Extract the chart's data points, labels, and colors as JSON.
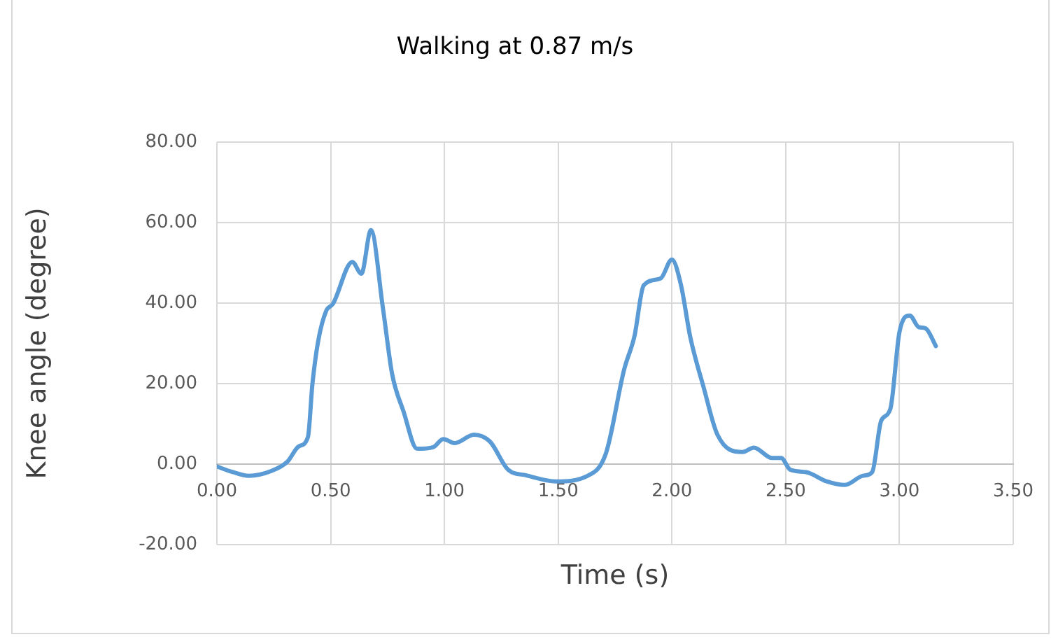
{
  "chart_data": {
    "type": "line",
    "title": "Walking at 0.87 m/s",
    "xlabel": "Time (s)",
    "ylabel": "Knee angle (degree)",
    "x": [
      0,
      0.07,
      0.14,
      0.24,
      0.31,
      0.36,
      0.4,
      0.42,
      0.445,
      0.48,
      0.51,
      0.595,
      0.635,
      0.677,
      0.73,
      0.77,
      0.82,
      0.88,
      0.95,
      0.995,
      1.045,
      1.13,
      1.2,
      1.28,
      1.36,
      1.49,
      1.63,
      1.71,
      1.79,
      1.835,
      1.876,
      1.95,
      2.0,
      2.04,
      2.08,
      2.14,
      2.2,
      2.31,
      2.36,
      2.44,
      2.48,
      2.52,
      2.59,
      2.68,
      2.76,
      2.84,
      2.88,
      2.92,
      2.96,
      3.0,
      3.045,
      3.085,
      3.115,
      3.16
    ],
    "series": [
      {
        "color": "#5b9bd5",
        "values": [
          -0.6,
          -2.0,
          -2.9,
          -1.7,
          0.6,
          4.4,
          6.7,
          20,
          30.5,
          38,
          39.8,
          50.2,
          47.3,
          58.1,
          38.6,
          22.4,
          13.1,
          3.8,
          4.2,
          6.2,
          5.2,
          7.3,
          5.6,
          -1.4,
          -2.8,
          -4.3,
          -2.9,
          2.7,
          23.5,
          31.7,
          44.4,
          46.1,
          50.8,
          44.4,
          31.7,
          18.9,
          7.3,
          3.0,
          4.1,
          1.5,
          1.5,
          -1.4,
          -2.0,
          -4.3,
          -5.2,
          -2.9,
          -2.0,
          10.8,
          13.7,
          32.8,
          36.9,
          34,
          33.7,
          29.3
        ]
      }
    ],
    "xlim": [
      0,
      3.5
    ],
    "ylim": [
      -20,
      80
    ],
    "xticks": [
      {
        "value": 0,
        "label": "0.00"
      },
      {
        "value": 0.5,
        "label": "0.50"
      },
      {
        "value": 1,
        "label": "1.00"
      },
      {
        "value": 1.5,
        "label": "1.50"
      },
      {
        "value": 2,
        "label": "2.00"
      },
      {
        "value": 2.5,
        "label": "2.50"
      },
      {
        "value": 3,
        "label": "3.00"
      },
      {
        "value": 3.5,
        "label": "3.50"
      }
    ],
    "yticks": [
      {
        "value": -20,
        "label": "-20.00"
      },
      {
        "value": 0,
        "label": "0.00"
      },
      {
        "value": 20,
        "label": "20.00"
      },
      {
        "value": 40,
        "label": "40.00"
      },
      {
        "value": 60,
        "label": "60.00"
      },
      {
        "value": 80,
        "label": "80.00"
      }
    ],
    "grid": true,
    "legend": false,
    "marker": "none",
    "line_style": "solid"
  }
}
